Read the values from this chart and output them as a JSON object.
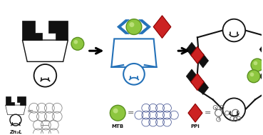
{
  "bg_color": "#ffffff",
  "zn_color": "#111111",
  "mtb_color": "#8dc63f",
  "mtb_highlight": "#c8e88a",
  "mtb_edge": "#5a9020",
  "ppi_color": "#cc2222",
  "ppi_edge": "#8b0000",
  "complex_color": "#2471b8",
  "complex_fill": "#ddeeff",
  "label_zn": "Zn₂L",
  "label_mtb": "MTB",
  "label_ppi": "PPi",
  "figsize": [
    3.69,
    1.89
  ],
  "dpi": 100
}
